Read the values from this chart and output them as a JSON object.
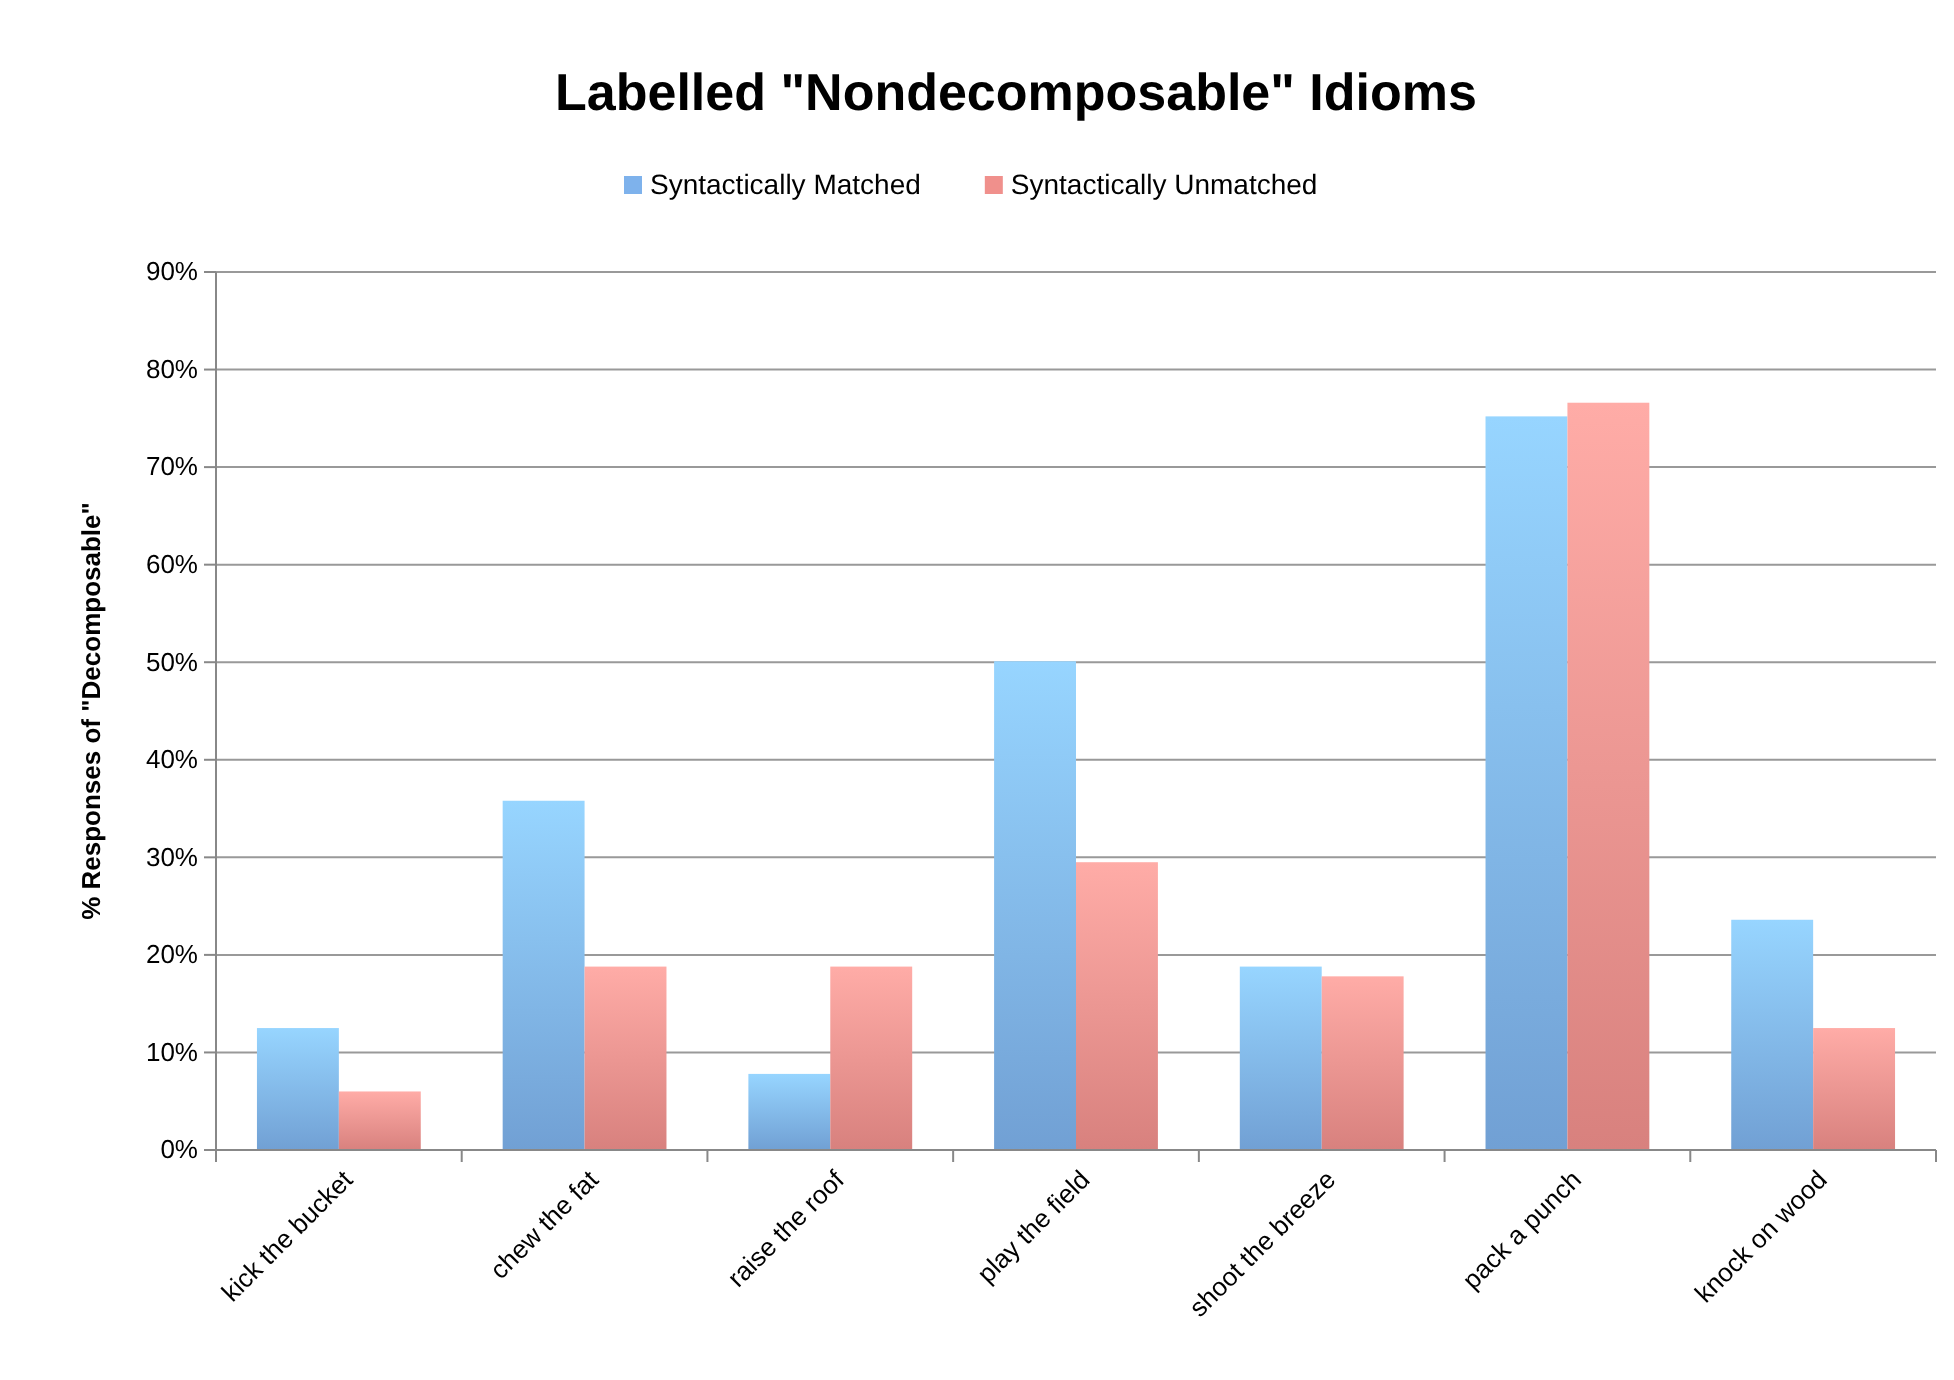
{
  "chart_data": {
    "type": "bar",
    "title": "Labelled \"Nondecomposable\" Idioms",
    "ylabel": "% Responses of \"Decomposable\"",
    "categories": [
      "kick the bucket",
      "chew the fat",
      "raise the roof",
      "play the field",
      "shoot the breeze",
      "pack a punch",
      "knock on wood"
    ],
    "series": [
      {
        "name": "Syntactically Matched",
        "color": "#7eb2ec",
        "values": [
          12.5,
          35.8,
          7.8,
          50.1,
          18.8,
          75.2,
          23.6
        ]
      },
      {
        "name": "Syntactically Unmatched",
        "color": "#f0908c",
        "values": [
          6,
          18.8,
          18.8,
          29.5,
          17.8,
          76.6,
          12.5
        ]
      }
    ],
    "ylim": [
      0,
      90
    ],
    "yticks": [
      {
        "value": 0,
        "label": "0%"
      },
      {
        "value": 10,
        "label": "10%"
      },
      {
        "value": 20,
        "label": "20%"
      },
      {
        "value": 30,
        "label": "30%"
      },
      {
        "value": 40,
        "label": "40%"
      },
      {
        "value": 50,
        "label": "50%"
      },
      {
        "value": 60,
        "label": "60%"
      },
      {
        "value": 70,
        "label": "70%"
      },
      {
        "value": 80,
        "label": "80%"
      },
      {
        "value": 90,
        "label": "90%"
      }
    ],
    "grid": "y",
    "legend": "top"
  }
}
